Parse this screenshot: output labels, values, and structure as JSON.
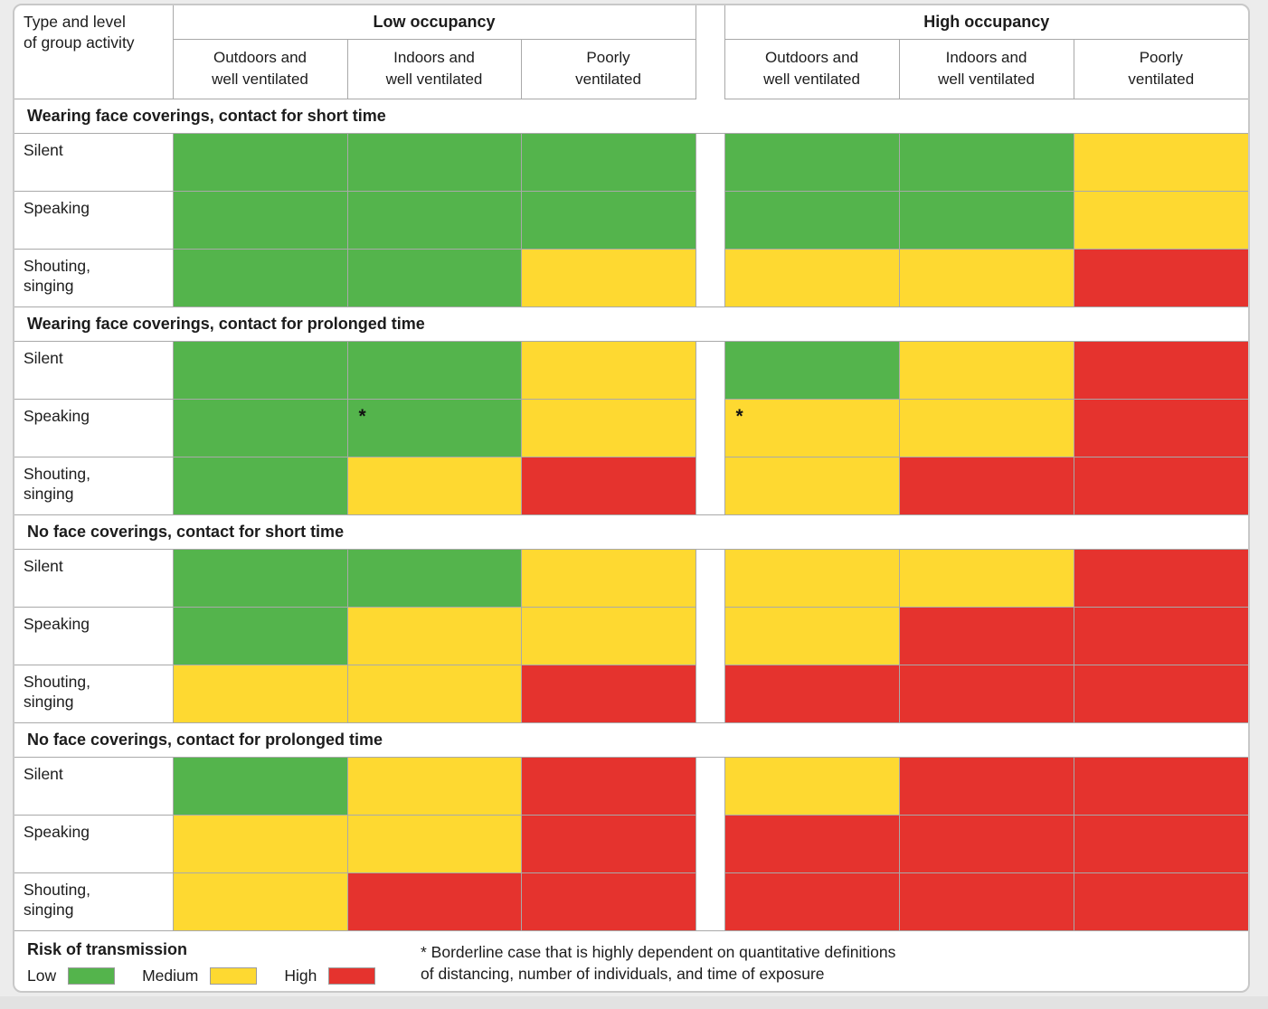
{
  "colors": {
    "risk_low": "#54B44C",
    "risk_medium": "#FED931",
    "risk_high": "#E5332E",
    "cell_border": "#A9A9A9",
    "card_border": "#C8C8C8",
    "page_background": "#ECECEC"
  },
  "chart_data": {
    "type": "heatmap",
    "corner_header": {
      "label": "Type and level of group activity",
      "lines": [
        "Type and level",
        "of group activity"
      ]
    },
    "column_groups": [
      "Low occupancy",
      "High occupancy"
    ],
    "columns": [
      {
        "label": "Outdoors and well ventilated",
        "lines": [
          "Outdoors and",
          "well ventilated"
        ]
      },
      {
        "label": "Indoors and well ventilated",
        "lines": [
          "Indoors and",
          "well ventilated"
        ]
      },
      {
        "label": "Poorly ventilated",
        "lines": [
          "Poorly",
          "ventilated"
        ]
      }
    ],
    "risk_levels": [
      "Low",
      "Medium",
      "High"
    ],
    "sections": [
      {
        "title": "Wearing face coverings, contact for short time",
        "rows": [
          {
            "activity": "Silent",
            "activity_lines": [
              "Silent"
            ],
            "low_occupancy": [
              "Low",
              "Low",
              "Low"
            ],
            "high_occupancy": [
              "Low",
              "Low",
              "Medium"
            ]
          },
          {
            "activity": "Speaking",
            "activity_lines": [
              "Speaking"
            ],
            "low_occupancy": [
              "Low",
              "Low",
              "Low"
            ],
            "high_occupancy": [
              "Low",
              "Low",
              "Medium"
            ]
          },
          {
            "activity": "Shouting, singing",
            "activity_lines": [
              "Shouting,",
              "singing"
            ],
            "low_occupancy": [
              "Low",
              "Low",
              "Medium"
            ],
            "high_occupancy": [
              "Medium",
              "Medium",
              "High"
            ]
          }
        ]
      },
      {
        "title": "Wearing face coverings, contact for prolonged time",
        "rows": [
          {
            "activity": "Silent",
            "activity_lines": [
              "Silent"
            ],
            "low_occupancy": [
              "Low",
              "Low",
              "Medium"
            ],
            "high_occupancy": [
              "Low",
              "Medium",
              "High"
            ]
          },
          {
            "activity": "Speaking",
            "activity_lines": [
              "Speaking"
            ],
            "low_occupancy": [
              "Low",
              {
                "risk": "Low",
                "marker": "*"
              },
              "Medium"
            ],
            "high_occupancy": [
              {
                "risk": "Medium",
                "marker": "*"
              },
              "Medium",
              "High"
            ]
          },
          {
            "activity": "Shouting, singing",
            "activity_lines": [
              "Shouting,",
              "singing"
            ],
            "low_occupancy": [
              "Low",
              "Medium",
              "High"
            ],
            "high_occupancy": [
              "Medium",
              "High",
              "High"
            ]
          }
        ]
      },
      {
        "title": "No face coverings, contact for short time",
        "rows": [
          {
            "activity": "Silent",
            "activity_lines": [
              "Silent"
            ],
            "low_occupancy": [
              "Low",
              "Low",
              "Medium"
            ],
            "high_occupancy": [
              "Medium",
              "Medium",
              "High"
            ]
          },
          {
            "activity": "Speaking",
            "activity_lines": [
              "Speaking"
            ],
            "low_occupancy": [
              "Low",
              "Medium",
              "Medium"
            ],
            "high_occupancy": [
              "Medium",
              "High",
              "High"
            ]
          },
          {
            "activity": "Shouting, singing",
            "activity_lines": [
              "Shouting,",
              "singing"
            ],
            "low_occupancy": [
              "Medium",
              "Medium",
              "High"
            ],
            "high_occupancy": [
              "High",
              "High",
              "High"
            ]
          }
        ]
      },
      {
        "title": "No face coverings, contact for prolonged time",
        "rows": [
          {
            "activity": "Silent",
            "activity_lines": [
              "Silent"
            ],
            "low_occupancy": [
              "Low",
              "Medium",
              "High"
            ],
            "high_occupancy": [
              "Medium",
              "High",
              "High"
            ]
          },
          {
            "activity": "Speaking",
            "activity_lines": [
              "Speaking"
            ],
            "low_occupancy": [
              "Medium",
              "Medium",
              "High"
            ],
            "high_occupancy": [
              "High",
              "High",
              "High"
            ]
          },
          {
            "activity": "Shouting, singing",
            "activity_lines": [
              "Shouting,",
              "singing"
            ],
            "low_occupancy": [
              "Medium",
              "High",
              "High"
            ],
            "high_occupancy": [
              "High",
              "High",
              "High"
            ]
          }
        ]
      }
    ]
  },
  "legend": {
    "title": "Risk of transmission",
    "items": [
      {
        "label": "Low",
        "risk": "Low"
      },
      {
        "label": "Medium",
        "risk": "Medium"
      },
      {
        "label": "High",
        "risk": "High"
      }
    ]
  },
  "footnote": {
    "lines": [
      "* Borderline case that is highly dependent on quantitative definitions",
      "of distancing, number of individuals, and time of exposure"
    ]
  }
}
